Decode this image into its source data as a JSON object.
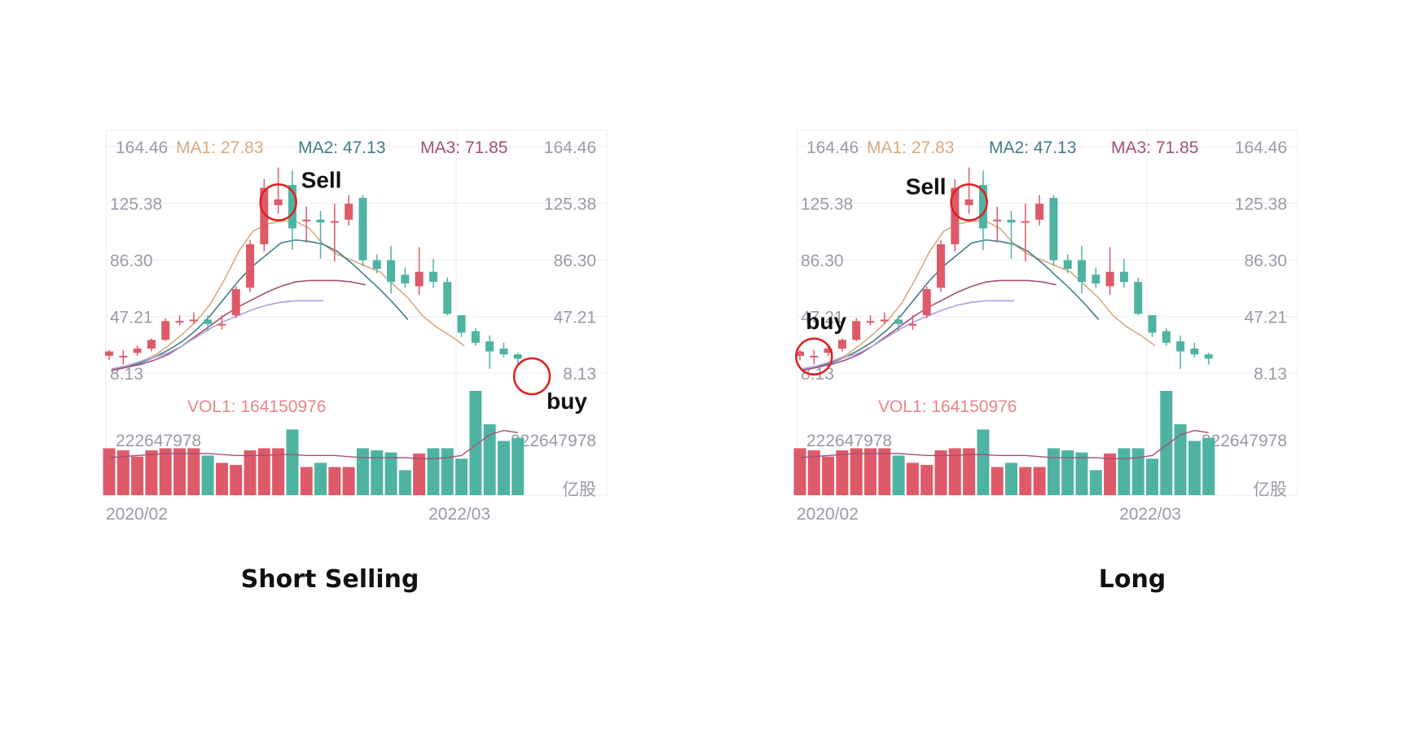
{
  "colors": {
    "up": "#de5a68",
    "down": "#4fb3a2",
    "ma1": "#d9a97e",
    "ma2": "#3f7f86",
    "ma3": "#a3507a",
    "ma4": "#a9a2e0",
    "axis_text": "#9a9aa8",
    "grid": "#ececef",
    "vol_label": "#e8858d",
    "marker": "#e02020"
  },
  "panels": [
    {
      "caption": "Short Selling",
      "chart_data": {
        "type": "candlestick",
        "legend": {
          "y_top": "164.46",
          "ma1": "MA1: 27.83",
          "ma2": "MA2: 47.13",
          "ma3": "MA3: 71.85"
        },
        "y_ticks": [
          "164.46",
          "125.38",
          "86.30",
          "47.21",
          "8.13"
        ],
        "volume_label": "VOL1: 164150976",
        "volume_max_label": "222647978",
        "volume_unit": "亿股",
        "x_ticks": [
          "2020/02",
          "2022/03"
        ],
        "ylim": [
          8.13,
          164.46
        ],
        "candles": [
          {
            "o": 20,
            "h": 24,
            "l": 17,
            "c": 23
          },
          {
            "o": 19,
            "h": 24,
            "l": 14,
            "c": 20
          },
          {
            "o": 22,
            "h": 27,
            "l": 20,
            "c": 25
          },
          {
            "o": 25,
            "h": 32,
            "l": 23,
            "c": 31
          },
          {
            "o": 31,
            "h": 46,
            "l": 30,
            "c": 44
          },
          {
            "o": 44,
            "h": 48,
            "l": 41,
            "c": 44
          },
          {
            "o": 44,
            "h": 50,
            "l": 42,
            "c": 45
          },
          {
            "o": 45,
            "h": 48,
            "l": 37,
            "c": 42
          },
          {
            "o": 42,
            "h": 48,
            "l": 38,
            "c": 42
          },
          {
            "o": 48,
            "h": 68,
            "l": 46,
            "c": 66
          },
          {
            "o": 67,
            "h": 100,
            "l": 64,
            "c": 97
          },
          {
            "o": 97,
            "h": 142,
            "l": 92,
            "c": 136
          },
          {
            "o": 124,
            "h": 150,
            "l": 118,
            "c": 128
          },
          {
            "o": 138,
            "h": 148,
            "l": 93,
            "c": 108
          },
          {
            "o": 114,
            "h": 123,
            "l": 98,
            "c": 114
          },
          {
            "o": 114,
            "h": 120,
            "l": 87,
            "c": 112
          },
          {
            "o": 112,
            "h": 125,
            "l": 85,
            "c": 113
          },
          {
            "o": 114,
            "h": 131,
            "l": 110,
            "c": 125
          },
          {
            "o": 129,
            "h": 131,
            "l": 82,
            "c": 86
          },
          {
            "o": 86,
            "h": 90,
            "l": 77,
            "c": 80
          },
          {
            "o": 86,
            "h": 96,
            "l": 63,
            "c": 71
          },
          {
            "o": 76,
            "h": 81,
            "l": 67,
            "c": 70
          },
          {
            "o": 68,
            "h": 95,
            "l": 62,
            "c": 78
          },
          {
            "o": 78,
            "h": 87,
            "l": 67,
            "c": 71
          },
          {
            "o": 71,
            "h": 74,
            "l": 48,
            "c": 49
          },
          {
            "o": 48,
            "h": 48,
            "l": 33,
            "c": 36
          },
          {
            "o": 37,
            "h": 39,
            "l": 27,
            "c": 29
          },
          {
            "o": 30,
            "h": 34,
            "l": 11,
            "c": 23
          },
          {
            "o": 25,
            "h": 29,
            "l": 19,
            "c": 21
          },
          {
            "o": 21,
            "h": 22,
            "l": 14,
            "c": 18
          }
        ],
        "ma_lines": [
          {
            "name": "MA1",
            "color_key": "ma1",
            "values": [
              10,
              13,
              16,
              20,
              27,
              35,
              44,
              56,
              73,
              92,
              106,
              111,
              113,
              113,
              108,
              97,
              90,
              86,
              82,
              78,
              69,
              60,
              48,
              40,
              34,
              27
            ]
          },
          {
            "name": "MA2",
            "color_key": "ma2",
            "values": [
              10,
              12,
              15,
              19,
              24,
              30,
              38,
              48,
              60,
              72,
              82,
              90,
              98,
              100,
              99,
              97,
              92,
              84,
              75,
              66,
              56,
              45
            ]
          },
          {
            "name": "MA3",
            "color_key": "ma3",
            "values": [
              10,
              12,
              14,
              17,
              21,
              27,
              34,
              41,
              48,
              54,
              59,
              64,
              68,
              71,
              72,
              72,
              72,
              71,
              69
            ]
          },
          {
            "name": "MA4",
            "color_key": "ma4",
            "values": [
              11,
              13,
              16,
              19,
              22,
              27,
              33,
              39,
              44,
              48,
              52,
              55,
              57,
              58,
              58,
              58
            ]
          }
        ],
        "volume": [
          0.45,
          0.43,
          0.37,
          0.43,
          0.45,
          0.45,
          0.45,
          0.38,
          0.31,
          0.29,
          0.43,
          0.45,
          0.45,
          0.63,
          0.27,
          0.31,
          0.27,
          0.27,
          0.45,
          0.43,
          0.41,
          0.24,
          0.4,
          0.45,
          0.45,
          0.35,
          1.0,
          0.68,
          0.52,
          0.55
        ],
        "volume_ma": [
          0.36,
          0.37,
          0.38,
          0.39,
          0.4,
          0.4,
          0.4,
          0.4,
          0.39,
          0.38,
          0.38,
          0.38,
          0.39,
          0.39,
          0.38,
          0.38,
          0.38,
          0.37,
          0.36,
          0.36,
          0.36,
          0.36,
          0.35,
          0.35,
          0.36,
          0.38,
          0.48,
          0.58,
          0.62,
          0.6
        ],
        "markers": [
          {
            "label": "Sell",
            "candle": 12
          },
          {
            "label": "buy",
            "candle": 30
          }
        ]
      }
    },
    {
      "caption": "Long",
      "chart_data": {
        "type": "candlestick",
        "legend": {
          "y_top": "164.46",
          "ma1": "MA1: 27.83",
          "ma2": "MA2: 47.13",
          "ma3": "MA3: 71.85"
        },
        "y_ticks": [
          "164.46",
          "125.38",
          "86.30",
          "47.21",
          "8.13"
        ],
        "volume_label": "VOL1: 164150976",
        "volume_max_label": "222647978",
        "volume_unit": "亿股",
        "x_ticks": [
          "2020/02",
          "2022/03"
        ],
        "ylim": [
          8.13,
          164.46
        ],
        "candles": [
          {
            "o": 20,
            "h": 24,
            "l": 17,
            "c": 23
          },
          {
            "o": 19,
            "h": 24,
            "l": 14,
            "c": 20
          },
          {
            "o": 22,
            "h": 27,
            "l": 20,
            "c": 25
          },
          {
            "o": 25,
            "h": 32,
            "l": 23,
            "c": 31
          },
          {
            "o": 31,
            "h": 46,
            "l": 30,
            "c": 44
          },
          {
            "o": 44,
            "h": 48,
            "l": 41,
            "c": 44
          },
          {
            "o": 44,
            "h": 50,
            "l": 42,
            "c": 45
          },
          {
            "o": 45,
            "h": 48,
            "l": 37,
            "c": 42
          },
          {
            "o": 42,
            "h": 48,
            "l": 38,
            "c": 42
          },
          {
            "o": 48,
            "h": 68,
            "l": 46,
            "c": 66
          },
          {
            "o": 67,
            "h": 100,
            "l": 64,
            "c": 97
          },
          {
            "o": 97,
            "h": 142,
            "l": 92,
            "c": 136
          },
          {
            "o": 124,
            "h": 150,
            "l": 118,
            "c": 128
          },
          {
            "o": 138,
            "h": 148,
            "l": 93,
            "c": 108
          },
          {
            "o": 114,
            "h": 123,
            "l": 98,
            "c": 114
          },
          {
            "o": 114,
            "h": 120,
            "l": 87,
            "c": 112
          },
          {
            "o": 112,
            "h": 125,
            "l": 85,
            "c": 113
          },
          {
            "o": 114,
            "h": 131,
            "l": 110,
            "c": 125
          },
          {
            "o": 129,
            "h": 131,
            "l": 82,
            "c": 86
          },
          {
            "o": 86,
            "h": 90,
            "l": 77,
            "c": 80
          },
          {
            "o": 86,
            "h": 96,
            "l": 63,
            "c": 71
          },
          {
            "o": 76,
            "h": 81,
            "l": 67,
            "c": 70
          },
          {
            "o": 68,
            "h": 95,
            "l": 62,
            "c": 78
          },
          {
            "o": 78,
            "h": 87,
            "l": 67,
            "c": 71
          },
          {
            "o": 71,
            "h": 74,
            "l": 48,
            "c": 49
          },
          {
            "o": 48,
            "h": 48,
            "l": 33,
            "c": 36
          },
          {
            "o": 37,
            "h": 39,
            "l": 27,
            "c": 29
          },
          {
            "o": 30,
            "h": 34,
            "l": 11,
            "c": 23
          },
          {
            "o": 25,
            "h": 29,
            "l": 19,
            "c": 21
          },
          {
            "o": 21,
            "h": 22,
            "l": 14,
            "c": 18
          }
        ],
        "ma_lines": [
          {
            "name": "MA1",
            "color_key": "ma1",
            "values": [
              10,
              13,
              16,
              20,
              27,
              35,
              44,
              56,
              73,
              92,
              106,
              111,
              113,
              113,
              108,
              97,
              90,
              86,
              82,
              78,
              69,
              60,
              48,
              40,
              34,
              27
            ]
          },
          {
            "name": "MA2",
            "color_key": "ma2",
            "values": [
              10,
              12,
              15,
              19,
              24,
              30,
              38,
              48,
              60,
              72,
              82,
              90,
              98,
              100,
              99,
              97,
              92,
              84,
              75,
              66,
              56,
              45
            ]
          },
          {
            "name": "MA3",
            "color_key": "ma3",
            "values": [
              10,
              12,
              14,
              17,
              21,
              27,
              34,
              41,
              48,
              54,
              59,
              64,
              68,
              71,
              72,
              72,
              72,
              71,
              69
            ]
          },
          {
            "name": "MA4",
            "color_key": "ma4",
            "values": [
              11,
              13,
              16,
              19,
              22,
              27,
              33,
              39,
              44,
              48,
              52,
              55,
              57,
              58,
              58,
              58
            ]
          }
        ],
        "volume": [
          0.45,
          0.43,
          0.37,
          0.43,
          0.45,
          0.45,
          0.45,
          0.38,
          0.31,
          0.29,
          0.43,
          0.45,
          0.45,
          0.63,
          0.27,
          0.31,
          0.27,
          0.27,
          0.45,
          0.43,
          0.41,
          0.24,
          0.4,
          0.45,
          0.45,
          0.35,
          1.0,
          0.68,
          0.52,
          0.55
        ],
        "volume_ma": [
          0.36,
          0.37,
          0.38,
          0.39,
          0.4,
          0.4,
          0.4,
          0.4,
          0.39,
          0.38,
          0.38,
          0.38,
          0.39,
          0.39,
          0.38,
          0.38,
          0.38,
          0.37,
          0.36,
          0.36,
          0.36,
          0.36,
          0.35,
          0.35,
          0.36,
          0.38,
          0.48,
          0.58,
          0.62,
          0.6
        ],
        "markers": [
          {
            "label": "buy",
            "candle": 1
          },
          {
            "label": "Sell",
            "candle": 12
          }
        ]
      }
    }
  ]
}
